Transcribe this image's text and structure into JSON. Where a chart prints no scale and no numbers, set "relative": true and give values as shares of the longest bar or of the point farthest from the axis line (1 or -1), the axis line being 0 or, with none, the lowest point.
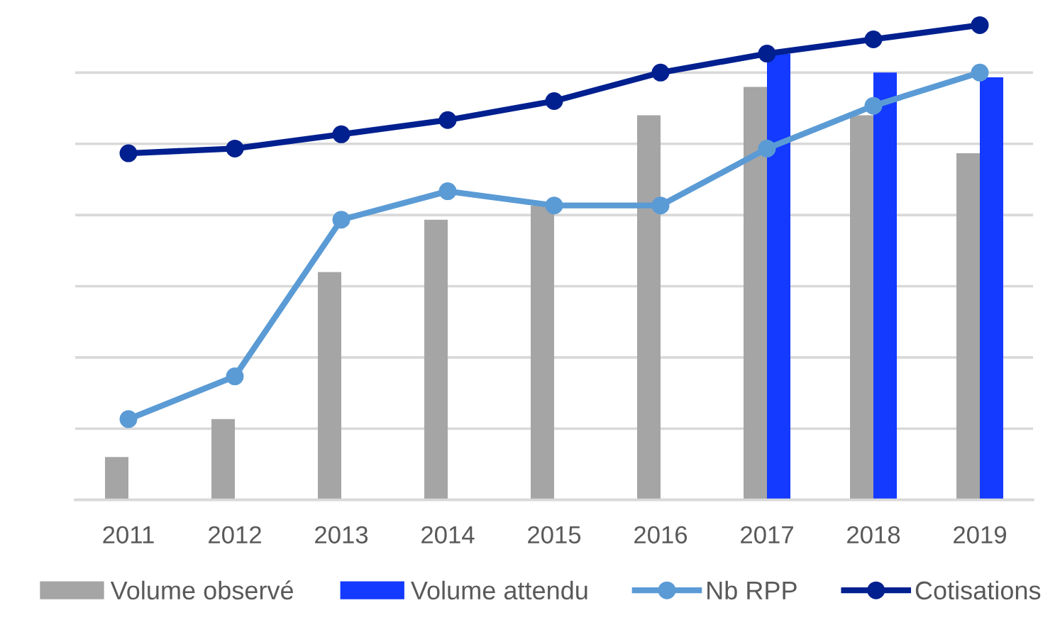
{
  "chart_data": {
    "type": "bar",
    "relative": true,
    "grid": "y",
    "legend": "bottom",
    "marker": "circle",
    "categories": [
      "2011",
      "2012",
      "2013",
      "2014",
      "2015",
      "2016",
      "2017",
      "2018",
      "2019"
    ],
    "series": [
      {
        "name": "Volume observé",
        "color": "#a5a5a5",
        "values": [
          0.09,
          0.17,
          0.48,
          0.59,
          0.62,
          0.81,
          0.87,
          0.81,
          0.73
        ]
      },
      {
        "name": "Volume attendu",
        "color": "#1439ff",
        "values": [
          null,
          null,
          null,
          null,
          null,
          null,
          0.94,
          0.9,
          0.89
        ]
      },
      {
        "name": "Nb RPP",
        "type": "line",
        "color": "#5b9bd5",
        "values": [
          0.17,
          0.26,
          0.59,
          0.65,
          0.62,
          0.62,
          0.74,
          0.83,
          0.9
        ]
      },
      {
        "name": "Cotisations",
        "type": "line",
        "color": "#00208f",
        "values": [
          0.73,
          0.74,
          0.77,
          0.8,
          0.84,
          0.9,
          0.94,
          0.97,
          1.0
        ]
      }
    ]
  }
}
